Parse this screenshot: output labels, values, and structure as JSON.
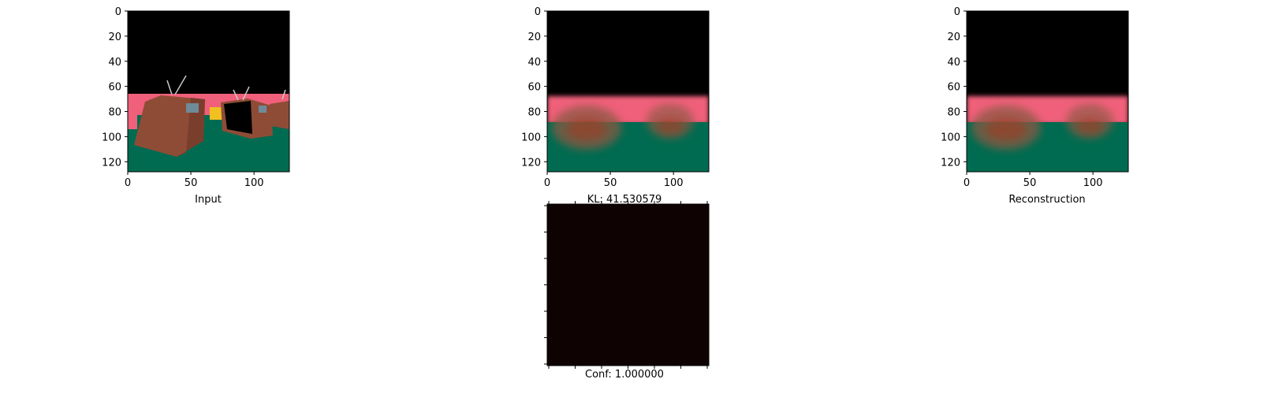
{
  "chart_data": [
    {
      "type": "image",
      "image_description": "Rendered 3D scene: black sky, pink horizon band, green ground, brown boxy objects with antennae",
      "xlabel": "Input",
      "xlim": [
        0,
        128
      ],
      "ylim": [
        128,
        0
      ],
      "xticks": [
        "0",
        "50",
        "100"
      ],
      "yticks": [
        "0",
        "20",
        "40",
        "60",
        "80",
        "100",
        "120"
      ],
      "colors": {
        "sky": "#000000",
        "horizon": "#f0607a",
        "ground": "#006b50",
        "objects": "#8a4a33",
        "highlight": "#f0c020",
        "window": "#6f8a98"
      }
    },
    {
      "type": "image",
      "image_description": "Blurry reconstruction: black sky, pink band, green ground, two blurred object blobs",
      "xlabel": "KL: 41.530579",
      "xlim": [
        0,
        128
      ],
      "ylim": [
        128,
        0
      ],
      "xticks": [
        "0",
        "50",
        "100"
      ],
      "yticks": [
        "0",
        "20",
        "40",
        "60",
        "80",
        "100",
        "120"
      ],
      "colors": {
        "sky": "#000000",
        "horizon": "#f0607a",
        "ground": "#006b50",
        "blobs": "#8a5a45"
      }
    },
    {
      "type": "image",
      "image_description": "Blurry reconstruction identical in layout to the middle panel",
      "xlabel": "Reconstruction",
      "xlim": [
        0,
        128
      ],
      "ylim": [
        128,
        0
      ],
      "xticks": [
        "0",
        "50",
        "100"
      ],
      "yticks": [
        "0",
        "20",
        "40",
        "60",
        "80",
        "100",
        "120"
      ],
      "colors": {
        "sky": "#000000",
        "horizon": "#f0607a",
        "ground": "#006b50",
        "blobs": "#8a5a45"
      }
    },
    {
      "type": "heatmap",
      "image_description": "Uniform dark confidence map",
      "xlabel": "Conf: 1.000000",
      "value": 1.0,
      "xticks_count": 7,
      "yticks_count": 7,
      "tick_labels_visible": false,
      "colors": {
        "fill": "#0f0202"
      }
    }
  ]
}
